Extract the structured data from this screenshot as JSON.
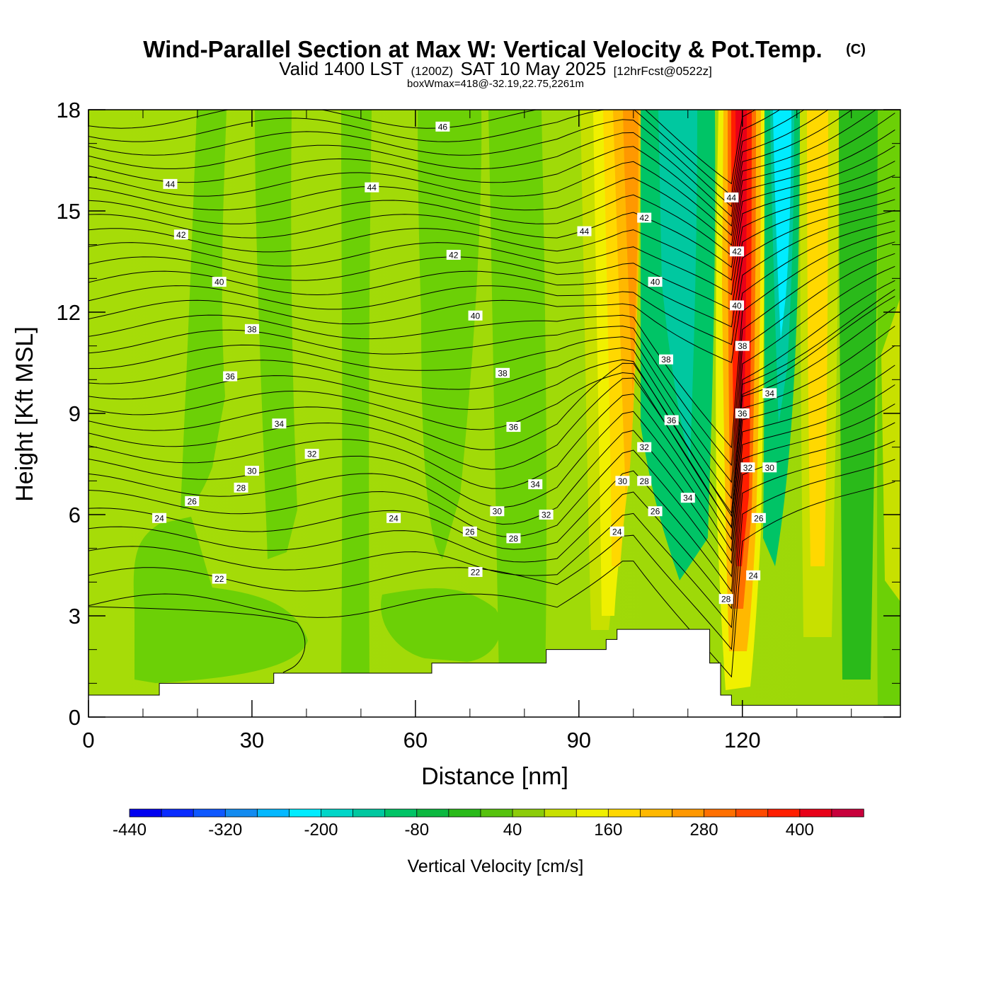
{
  "header": {
    "title": "Wind-Parallel Section at Max W: Vertical Velocity & Pot.Temp.",
    "copyright": "(C)",
    "valid_prefix": "Valid 1400 LST",
    "valid_utc": "(1200Z)",
    "valid_date": "SAT 10 May 2025",
    "forecast": "[12hrFcst@0522z]",
    "boxwmax": "boxWmax=418@-32.19,22.75,2261m"
  },
  "chart_data": {
    "type": "heatmap",
    "xlabel": "Distance [nm]",
    "ylabel": "Height [Kft MSL]",
    "xlim": [
      0,
      149
    ],
    "ylim": [
      0,
      18
    ],
    "x_ticks": [
      0,
      30,
      60,
      90,
      120
    ],
    "y_ticks": [
      0,
      3,
      6,
      9,
      12,
      15,
      18
    ],
    "colorbar": {
      "label": "Vertical Velocity [cm/s]",
      "range": [
        -440,
        480
      ],
      "step": 40,
      "tick_values": [
        -440,
        -320,
        -200,
        -80,
        40,
        160,
        280,
        400
      ],
      "colors": [
        "#0000f0",
        "#0a2bff",
        "#0f58ff",
        "#138bf0",
        "#05b8ff",
        "#00ecff",
        "#00d6c8",
        "#00c8a0",
        "#00c466",
        "#0cb840",
        "#2aba1a",
        "#56c20e",
        "#8ccc0a",
        "#c8e000",
        "#f0f000",
        "#ffd800",
        "#ffb800",
        "#ff9800",
        "#ff7000",
        "#ff4a00",
        "#ff1e00",
        "#e80018",
        "#c8003c"
      ]
    },
    "terrain_profile": [
      [
        0,
        0.65
      ],
      [
        13,
        0.65
      ],
      [
        13,
        1.0
      ],
      [
        34,
        1.0
      ],
      [
        34,
        1.3
      ],
      [
        63,
        1.3
      ],
      [
        63,
        1.6
      ],
      [
        84,
        1.6
      ],
      [
        84,
        2.0
      ],
      [
        95,
        2.0
      ],
      [
        95,
        2.3
      ],
      [
        97,
        2.3
      ],
      [
        97,
        2.6
      ],
      [
        114,
        2.6
      ],
      [
        114,
        1.6
      ],
      [
        116,
        1.6
      ],
      [
        116,
        0.65
      ],
      [
        118,
        0.65
      ],
      [
        118,
        0.35
      ],
      [
        149,
        0.35
      ]
    ],
    "theta_contour_labels": [
      {
        "label": "46",
        "x": 65,
        "y": 17.5
      },
      {
        "label": "44",
        "x": 15,
        "y": 15.8
      },
      {
        "label": "44",
        "x": 52,
        "y": 15.7
      },
      {
        "label": "44",
        "x": 91,
        "y": 14.4
      },
      {
        "label": "44",
        "x": 118,
        "y": 15.4
      },
      {
        "label": "42",
        "x": 17,
        "y": 14.3
      },
      {
        "label": "42",
        "x": 67,
        "y": 13.7
      },
      {
        "label": "42",
        "x": 102,
        "y": 14.8
      },
      {
        "label": "42",
        "x": 119,
        "y": 13.8
      },
      {
        "label": "40",
        "x": 24,
        "y": 12.9
      },
      {
        "label": "40",
        "x": 71,
        "y": 11.9
      },
      {
        "label": "40",
        "x": 104,
        "y": 12.9
      },
      {
        "label": "40",
        "x": 119,
        "y": 12.2
      },
      {
        "label": "38",
        "x": 30,
        "y": 11.5
      },
      {
        "label": "38",
        "x": 76,
        "y": 10.2
      },
      {
        "label": "38",
        "x": 106,
        "y": 10.6
      },
      {
        "label": "38",
        "x": 120,
        "y": 11.0
      },
      {
        "label": "36",
        "x": 26,
        "y": 10.1
      },
      {
        "label": "36",
        "x": 78,
        "y": 8.6
      },
      {
        "label": "36",
        "x": 107,
        "y": 8.8
      },
      {
        "label": "36",
        "x": 120,
        "y": 9.0
      },
      {
        "label": "34",
        "x": 35,
        "y": 8.7
      },
      {
        "label": "34",
        "x": 82,
        "y": 6.9
      },
      {
        "label": "34",
        "x": 110,
        "y": 6.5
      },
      {
        "label": "34",
        "x": 125,
        "y": 9.6
      },
      {
        "label": "32",
        "x": 41,
        "y": 7.8
      },
      {
        "label": "32",
        "x": 84,
        "y": 6.0
      },
      {
        "label": "32",
        "x": 102,
        "y": 8.0
      },
      {
        "label": "32",
        "x": 121,
        "y": 7.4
      },
      {
        "label": "30",
        "x": 30,
        "y": 7.3
      },
      {
        "label": "30",
        "x": 75,
        "y": 6.1
      },
      {
        "label": "30",
        "x": 98,
        "y": 7.0
      },
      {
        "label": "30",
        "x": 125,
        "y": 7.4
      },
      {
        "label": "28",
        "x": 28,
        "y": 6.8
      },
      {
        "label": "28",
        "x": 78,
        "y": 5.3
      },
      {
        "label": "28",
        "x": 102,
        "y": 7.0
      },
      {
        "label": "28",
        "x": 117,
        "y": 3.5
      },
      {
        "label": "26",
        "x": 19,
        "y": 6.4
      },
      {
        "label": "26",
        "x": 70,
        "y": 5.5
      },
      {
        "label": "26",
        "x": 104,
        "y": 6.1
      },
      {
        "label": "26",
        "x": 123,
        "y": 5.9
      },
      {
        "label": "24",
        "x": 13,
        "y": 5.9
      },
      {
        "label": "24",
        "x": 56,
        "y": 5.9
      },
      {
        "label": "24",
        "x": 97,
        "y": 5.5
      },
      {
        "label": "24",
        "x": 122,
        "y": 4.2
      },
      {
        "label": "22",
        "x": 24,
        "y": 4.1
      },
      {
        "label": "22",
        "x": 71,
        "y": 4.3
      }
    ]
  }
}
